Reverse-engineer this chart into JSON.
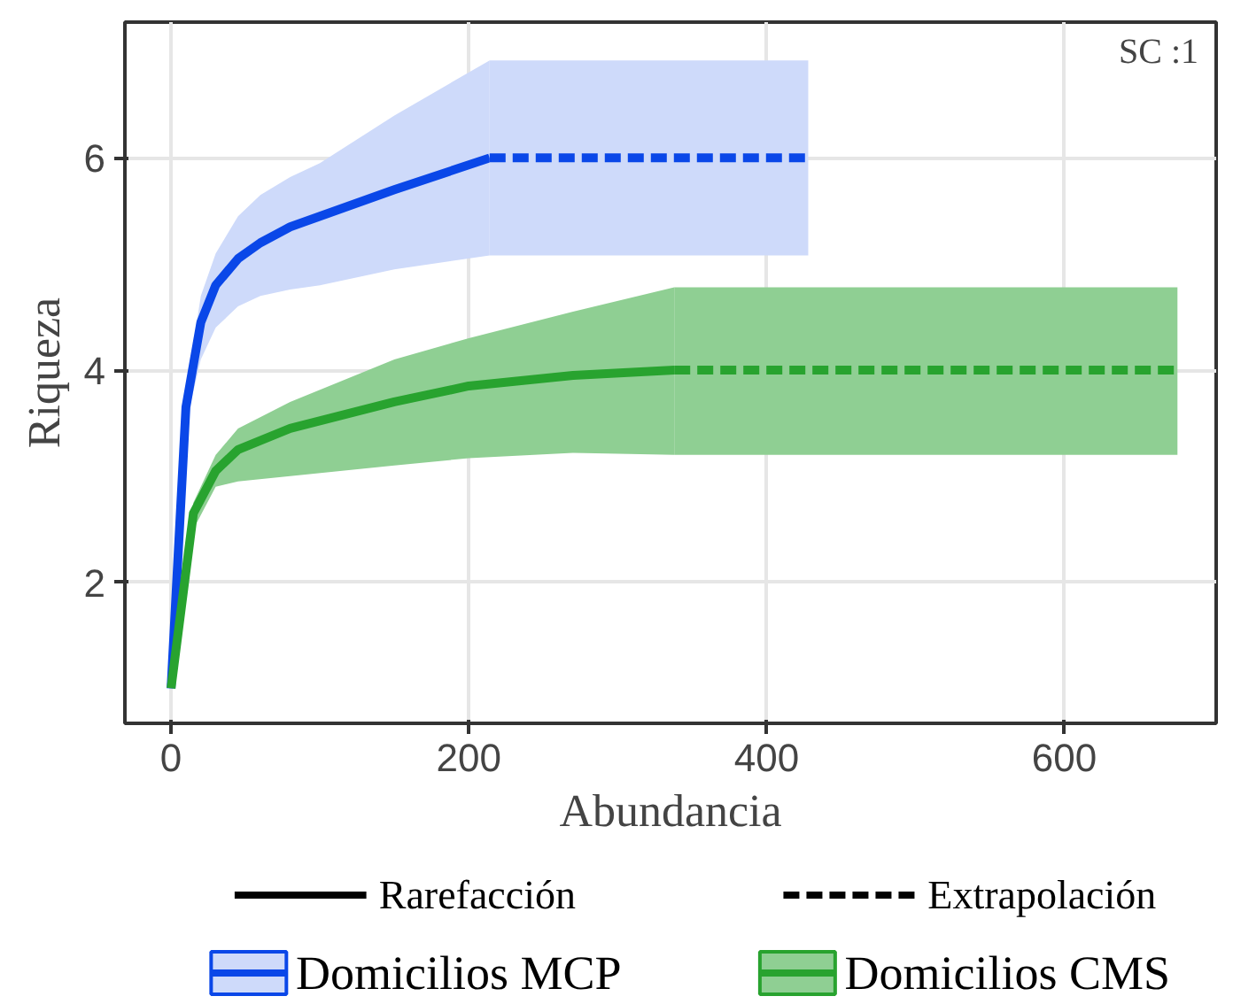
{
  "chart_data": {
    "type": "line",
    "xlabel": "Abundancia",
    "ylabel": "Riqueza",
    "xlim": [
      -31,
      702
    ],
    "ylim": [
      0.67,
      7.28
    ],
    "xticks": [
      0,
      200,
      400,
      600
    ],
    "yticks": [
      2,
      4,
      6
    ],
    "grid": true,
    "legend": "bottom",
    "marker": "none",
    "annotations": [
      "SC :1",
      "Rarefacción",
      "Extrapolación"
    ],
    "series": [
      {
        "name": "Domicilios MCP",
        "color": "#0a47e8",
        "line_style": "solid",
        "x": [
          0,
          10,
          20,
          30,
          45,
          60,
          80,
          100,
          150,
          214
        ],
        "values": [
          1,
          3.65,
          4.45,
          4.8,
          5.05,
          5.2,
          5.35,
          5.45,
          5.7,
          6.0
        ],
        "lower": [
          1,
          3.5,
          4.1,
          4.4,
          4.6,
          4.7,
          4.76,
          4.8,
          4.95,
          5.08
        ],
        "upper": [
          1,
          3.8,
          4.7,
          5.1,
          5.45,
          5.65,
          5.82,
          5.95,
          6.4,
          6.92
        ]
      },
      {
        "color": "#0a47e8",
        "line_style": "dashed",
        "x": [
          214,
          428
        ],
        "values": [
          6.0,
          6.0
        ],
        "lower": [
          5.08,
          5.08
        ],
        "upper": [
          6.92,
          6.92
        ]
      },
      {
        "name": "Domicilios CMS",
        "color": "#28a32f",
        "line_style": "solid",
        "x": [
          0,
          15,
          30,
          45,
          80,
          150,
          200,
          270,
          338
        ],
        "values": [
          1,
          2.65,
          3.05,
          3.25,
          3.45,
          3.7,
          3.85,
          3.95,
          4.0
        ],
        "lower": [
          1,
          2.5,
          2.9,
          2.95,
          3.0,
          3.1,
          3.17,
          3.22,
          3.2
        ],
        "upper": [
          1,
          2.75,
          3.2,
          3.45,
          3.7,
          4.1,
          4.3,
          4.55,
          4.78
        ]
      },
      {
        "color": "#28a32f",
        "line_style": "dashed",
        "x": [
          338,
          676
        ],
        "values": [
          4.0,
          4.0
        ],
        "lower": [
          3.2,
          3.2
        ],
        "upper": [
          4.78,
          4.78
        ]
      }
    ]
  }
}
